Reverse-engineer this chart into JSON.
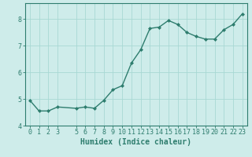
{
  "xlabel": "Humidex (Indice chaleur)",
  "x_values": [
    0,
    1,
    2,
    3,
    5,
    6,
    7,
    8,
    9,
    10,
    11,
    12,
    13,
    14,
    15,
    16,
    17,
    18,
    19,
    20,
    21,
    22,
    23
  ],
  "y_values": [
    4.95,
    4.55,
    4.55,
    4.7,
    4.65,
    4.7,
    4.65,
    4.95,
    5.35,
    5.5,
    6.35,
    6.85,
    7.65,
    7.7,
    7.95,
    7.8,
    7.5,
    7.35,
    7.25,
    7.25,
    7.6,
    7.8,
    8.2
  ],
  "line_color": "#2e7d6e",
  "marker": "D",
  "marker_size": 2.0,
  "background_color": "#ceecea",
  "grid_color": "#a8d8d4",
  "tick_color": "#2e7d6e",
  "label_color": "#2e7d6e",
  "ylim": [
    4.0,
    8.6
  ],
  "yticks": [
    4,
    5,
    6,
    7,
    8
  ],
  "xticks": [
    0,
    1,
    2,
    3,
    5,
    6,
    7,
    8,
    9,
    10,
    11,
    12,
    13,
    14,
    15,
    16,
    17,
    18,
    19,
    20,
    21,
    22,
    23
  ],
  "xlim": [
    -0.5,
    23.5
  ],
  "xlabel_fontsize": 7,
  "tick_fontsize": 6,
  "line_width": 1.0
}
